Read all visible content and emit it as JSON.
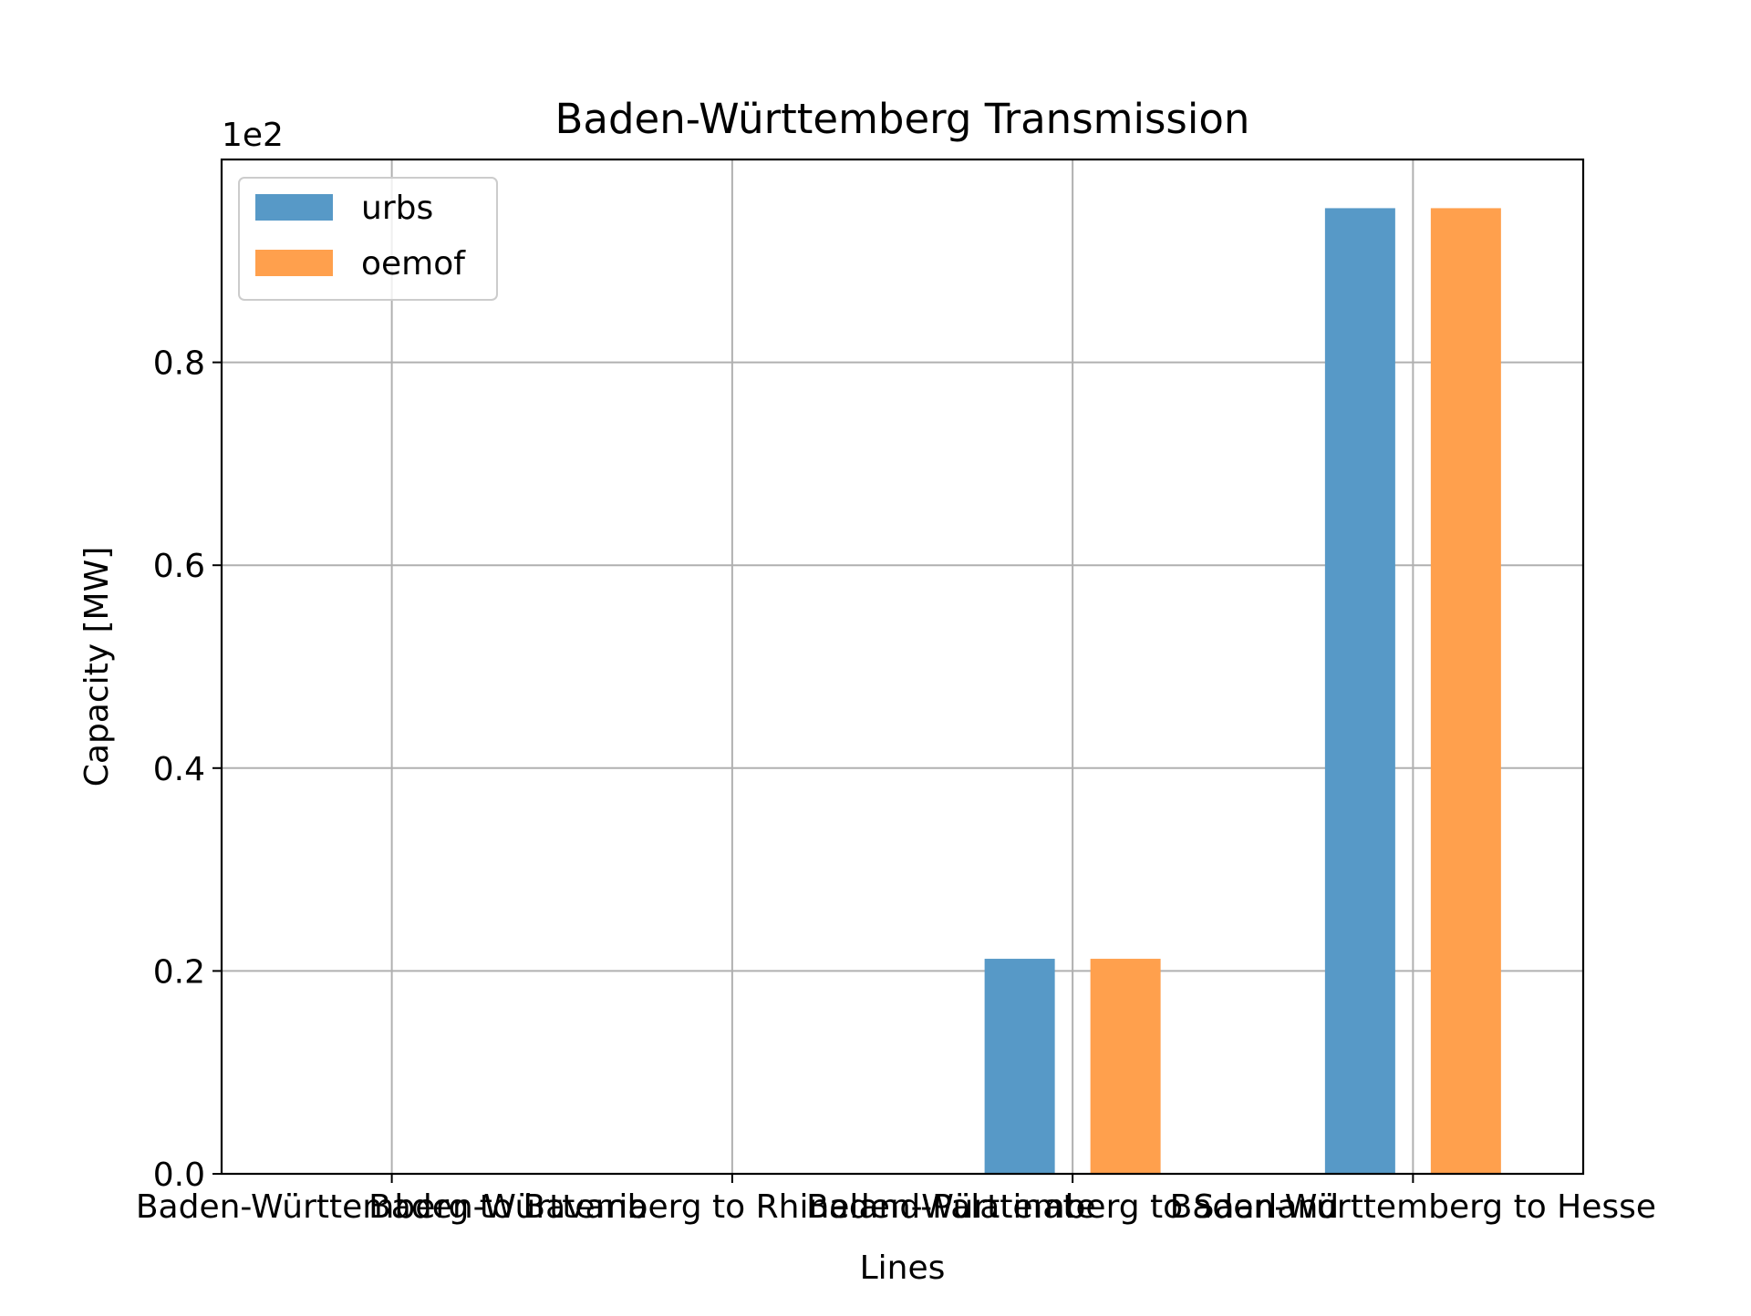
{
  "chart_data": {
    "type": "bar",
    "title": "Baden-Württemberg Transmission",
    "xlabel": "Lines",
    "ylabel": "Capacity [MW]",
    "offset_text": "1e2",
    "categories": [
      "Baden-Württemberg to Bavaria",
      "Baden-Württemberg to Rhineland-Palatinate",
      "Baden-Württemberg to Saarland",
      "Baden-Württemberg to Hesse"
    ],
    "series": [
      {
        "name": "urbs",
        "values": [
          0,
          0,
          0.212,
          0.952
        ],
        "color": "#5799c7"
      },
      {
        "name": "oemof",
        "values": [
          0,
          0,
          0.212,
          0.952
        ],
        "color": "#ffa04d"
      }
    ],
    "ylim": [
      0,
      1.0
    ],
    "yticks": [
      0.0,
      0.2,
      0.4,
      0.6,
      0.8
    ],
    "ytick_labels": [
      "0.0",
      "0.2",
      "0.4",
      "0.6",
      "0.8"
    ],
    "grid": true,
    "legend_position": "top-left"
  }
}
